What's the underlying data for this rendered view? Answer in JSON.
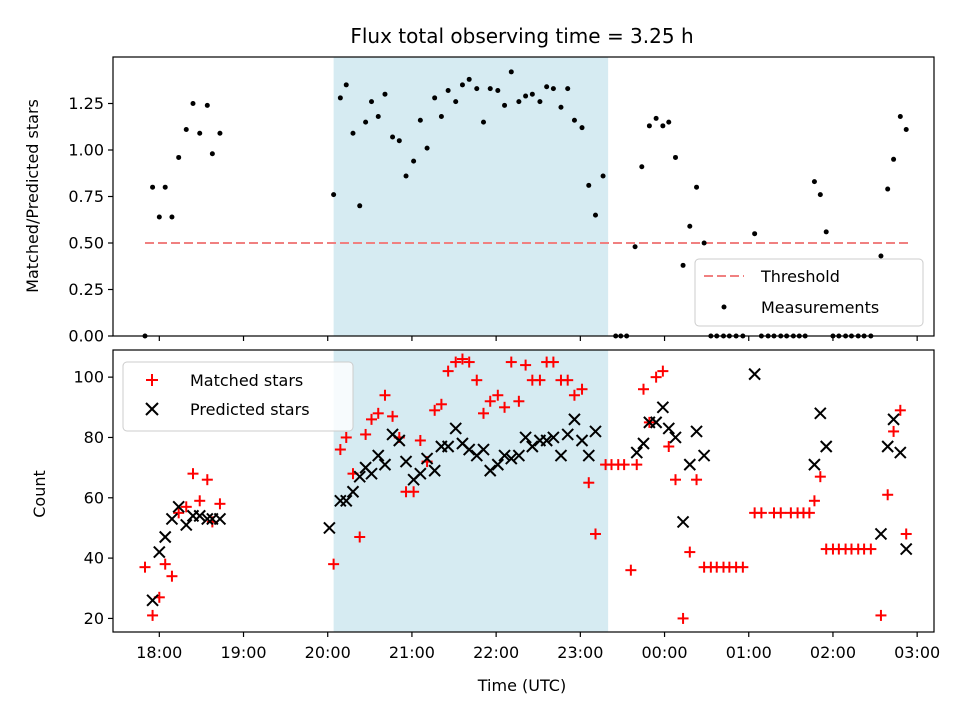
{
  "chart_data": [
    {
      "type": "scatter",
      "title": "Flux total observing time = 3.25 h",
      "xlabel": "",
      "ylabel": "Matched/Predicted stars",
      "xlim": [
        17.45,
        27.2
      ],
      "ylim": [
        0,
        1.5
      ],
      "yticks": [
        0,
        0.25,
        0.5,
        0.75,
        1.0,
        1.25
      ],
      "ytick_labels": [
        "0.00",
        "0.25",
        "0.50",
        "0.75",
        "1.00",
        "1.25"
      ],
      "shaded_region": [
        20.07,
        23.33
      ],
      "threshold": {
        "label": "Threshold",
        "value": 0.5,
        "x_range": [
          17.83,
          26.92
        ],
        "color": "#f08080"
      },
      "legend": {
        "position": "lower-right",
        "entries": [
          "Threshold",
          "Measurements"
        ]
      },
      "series": [
        {
          "name": "Measurements",
          "color": "#000000",
          "points": [
            [
              17.83,
              0.0
            ],
            [
              17.92,
              0.8
            ],
            [
              18.0,
              0.64
            ],
            [
              18.07,
              0.8
            ],
            [
              18.15,
              0.64
            ],
            [
              18.23,
              0.96
            ],
            [
              18.32,
              1.11
            ],
            [
              18.4,
              1.25
            ],
            [
              18.48,
              1.09
            ],
            [
              18.57,
              1.24
            ],
            [
              18.63,
              0.98
            ],
            [
              18.72,
              1.09
            ],
            [
              20.07,
              0.76
            ],
            [
              20.15,
              1.28
            ],
            [
              20.22,
              1.35
            ],
            [
              20.3,
              1.09
            ],
            [
              20.38,
              0.7
            ],
            [
              20.45,
              1.15
            ],
            [
              20.52,
              1.26
            ],
            [
              20.6,
              1.18
            ],
            [
              20.68,
              1.3
            ],
            [
              20.77,
              1.07
            ],
            [
              20.85,
              1.05
            ],
            [
              20.93,
              0.86
            ],
            [
              21.02,
              0.94
            ],
            [
              21.1,
              1.16
            ],
            [
              21.18,
              1.01
            ],
            [
              21.27,
              1.28
            ],
            [
              21.35,
              1.18
            ],
            [
              21.43,
              1.32
            ],
            [
              21.52,
              1.26
            ],
            [
              21.6,
              1.35
            ],
            [
              21.68,
              1.38
            ],
            [
              21.77,
              1.33
            ],
            [
              21.85,
              1.15
            ],
            [
              21.93,
              1.33
            ],
            [
              22.02,
              1.32
            ],
            [
              22.1,
              1.24
            ],
            [
              22.18,
              1.42
            ],
            [
              22.27,
              1.26
            ],
            [
              22.35,
              1.29
            ],
            [
              22.43,
              1.3
            ],
            [
              22.52,
              1.26
            ],
            [
              22.6,
              1.34
            ],
            [
              22.68,
              1.33
            ],
            [
              22.77,
              1.23
            ],
            [
              22.85,
              1.33
            ],
            [
              22.93,
              1.16
            ],
            [
              23.02,
              1.12
            ],
            [
              23.1,
              0.81
            ],
            [
              23.18,
              0.65
            ],
            [
              23.27,
              0.86
            ],
            [
              23.42,
              0.0
            ],
            [
              23.48,
              0.0
            ],
            [
              23.55,
              0.0
            ],
            [
              23.65,
              0.48
            ],
            [
              23.73,
              0.91
            ],
            [
              23.82,
              1.13
            ],
            [
              23.9,
              1.17
            ],
            [
              23.98,
              1.13
            ],
            [
              24.05,
              1.15
            ],
            [
              24.13,
              0.96
            ],
            [
              24.22,
              0.38
            ],
            [
              24.3,
              0.59
            ],
            [
              24.38,
              0.8
            ],
            [
              24.47,
              0.5
            ],
            [
              24.55,
              0.0
            ],
            [
              24.62,
              0.0
            ],
            [
              24.7,
              0.0
            ],
            [
              24.77,
              0.0
            ],
            [
              24.85,
              0.0
            ],
            [
              24.93,
              0.0
            ],
            [
              25.07,
              0.55
            ],
            [
              25.15,
              0.0
            ],
            [
              25.23,
              0.0
            ],
            [
              25.3,
              0.0
            ],
            [
              25.38,
              0.0
            ],
            [
              25.45,
              0.0
            ],
            [
              25.53,
              0.0
            ],
            [
              25.6,
              0.0
            ],
            [
              25.67,
              0.0
            ],
            [
              25.78,
              0.83
            ],
            [
              25.85,
              0.76
            ],
            [
              25.92,
              0.56
            ],
            [
              26.0,
              0.0
            ],
            [
              26.07,
              0.0
            ],
            [
              26.15,
              0.0
            ],
            [
              26.22,
              0.0
            ],
            [
              26.3,
              0.0
            ],
            [
              26.37,
              0.0
            ],
            [
              26.45,
              0.0
            ],
            [
              26.57,
              0.43
            ],
            [
              26.65,
              0.79
            ],
            [
              26.72,
              0.95
            ],
            [
              26.8,
              1.18
            ],
            [
              26.87,
              1.11
            ]
          ]
        }
      ]
    },
    {
      "type": "scatter",
      "title": "",
      "xlabel": "Time (UTC)",
      "ylabel": "Count",
      "xlim": [
        17.45,
        27.2
      ],
      "ylim": [
        15.5,
        109
      ],
      "yticks": [
        20,
        40,
        60,
        80,
        100
      ],
      "ytick_labels": [
        "20",
        "40",
        "60",
        "80",
        "100"
      ],
      "xticks": [
        18,
        19,
        20,
        21,
        22,
        23,
        24,
        25,
        26,
        27
      ],
      "xtick_labels": [
        "18:00",
        "19:00",
        "20:00",
        "21:00",
        "22:00",
        "23:00",
        "00:00",
        "01:00",
        "02:00",
        "03:00"
      ],
      "shaded_region": [
        20.07,
        23.33
      ],
      "legend": {
        "position": "upper-left",
        "entries": [
          "Matched stars",
          "Predicted stars"
        ]
      },
      "series": [
        {
          "name": "Matched stars",
          "marker": "+",
          "color": "#ff0000",
          "points": [
            [
              17.83,
              37
            ],
            [
              17.92,
              21
            ],
            [
              18.0,
              27
            ],
            [
              18.07,
              38
            ],
            [
              18.15,
              34
            ],
            [
              18.23,
              55
            ],
            [
              18.32,
              57
            ],
            [
              18.4,
              68
            ],
            [
              18.48,
              59
            ],
            [
              18.57,
              66
            ],
            [
              18.63,
              52
            ],
            [
              18.72,
              58
            ],
            [
              20.07,
              38
            ],
            [
              20.15,
              76
            ],
            [
              20.22,
              80
            ],
            [
              20.3,
              68
            ],
            [
              20.38,
              47
            ],
            [
              20.45,
              81
            ],
            [
              20.52,
              86
            ],
            [
              20.6,
              88
            ],
            [
              20.68,
              94
            ],
            [
              20.77,
              87
            ],
            [
              20.85,
              80
            ],
            [
              20.93,
              62
            ],
            [
              21.02,
              62
            ],
            [
              21.1,
              79
            ],
            [
              21.18,
              72
            ],
            [
              21.27,
              89
            ],
            [
              21.35,
              91
            ],
            [
              21.43,
              102
            ],
            [
              21.52,
              105
            ],
            [
              21.6,
              106
            ],
            [
              21.68,
              105
            ],
            [
              21.77,
              99
            ],
            [
              21.85,
              88
            ],
            [
              21.93,
              92
            ],
            [
              22.02,
              94
            ],
            [
              22.1,
              90
            ],
            [
              22.18,
              105
            ],
            [
              22.27,
              92
            ],
            [
              22.35,
              104
            ],
            [
              22.43,
              99
            ],
            [
              22.52,
              99
            ],
            [
              22.6,
              105
            ],
            [
              22.68,
              105
            ],
            [
              22.77,
              99
            ],
            [
              22.85,
              99
            ],
            [
              22.93,
              94
            ],
            [
              23.02,
              96
            ],
            [
              23.1,
              65
            ],
            [
              23.18,
              48
            ],
            [
              23.3,
              71
            ],
            [
              23.37,
              71
            ],
            [
              23.45,
              71
            ],
            [
              23.52,
              71
            ],
            [
              23.6,
              36
            ],
            [
              23.67,
              71
            ],
            [
              23.75,
              96
            ],
            [
              23.82,
              85
            ],
            [
              23.9,
              100
            ],
            [
              23.98,
              102
            ],
            [
              24.05,
              77
            ],
            [
              24.13,
              66
            ],
            [
              24.22,
              20
            ],
            [
              24.3,
              42
            ],
            [
              24.38,
              66
            ],
            [
              24.47,
              37
            ],
            [
              24.55,
              37
            ],
            [
              24.62,
              37
            ],
            [
              24.7,
              37
            ],
            [
              24.77,
              37
            ],
            [
              24.85,
              37
            ],
            [
              24.93,
              37
            ],
            [
              25.07,
              55
            ],
            [
              25.15,
              55
            ],
            [
              25.3,
              55
            ],
            [
              25.38,
              55
            ],
            [
              25.5,
              55
            ],
            [
              25.58,
              55
            ],
            [
              25.65,
              55
            ],
            [
              25.72,
              55
            ],
            [
              25.78,
              59
            ],
            [
              25.85,
              67
            ],
            [
              25.92,
              43
            ],
            [
              26.0,
              43
            ],
            [
              26.07,
              43
            ],
            [
              26.15,
              43
            ],
            [
              26.22,
              43
            ],
            [
              26.3,
              43
            ],
            [
              26.37,
              43
            ],
            [
              26.45,
              43
            ],
            [
              26.57,
              21
            ],
            [
              26.65,
              61
            ],
            [
              26.72,
              82
            ],
            [
              26.8,
              89
            ],
            [
              26.87,
              48
            ]
          ]
        },
        {
          "name": "Predicted stars",
          "marker": "x",
          "color": "#000000",
          "points": [
            [
              17.92,
              26
            ],
            [
              18.0,
              42
            ],
            [
              18.07,
              47
            ],
            [
              18.15,
              53
            ],
            [
              18.23,
              57
            ],
            [
              18.32,
              51
            ],
            [
              18.4,
              54
            ],
            [
              18.48,
              54
            ],
            [
              18.57,
              53
            ],
            [
              18.63,
              53
            ],
            [
              18.72,
              53
            ],
            [
              20.02,
              50
            ],
            [
              20.15,
              59
            ],
            [
              20.22,
              59
            ],
            [
              20.3,
              62
            ],
            [
              20.38,
              67
            ],
            [
              20.45,
              70
            ],
            [
              20.52,
              68
            ],
            [
              20.6,
              74
            ],
            [
              20.68,
              71
            ],
            [
              20.77,
              81
            ],
            [
              20.85,
              79
            ],
            [
              20.93,
              72
            ],
            [
              21.02,
              66
            ],
            [
              21.1,
              68
            ],
            [
              21.18,
              73
            ],
            [
              21.27,
              69
            ],
            [
              21.35,
              77
            ],
            [
              21.43,
              77
            ],
            [
              21.52,
              83
            ],
            [
              21.6,
              78
            ],
            [
              21.68,
              76
            ],
            [
              21.77,
              74
            ],
            [
              21.85,
              76
            ],
            [
              21.93,
              69
            ],
            [
              22.02,
              71
            ],
            [
              22.1,
              74
            ],
            [
              22.18,
              73
            ],
            [
              22.27,
              74
            ],
            [
              22.35,
              80
            ],
            [
              22.43,
              77
            ],
            [
              22.52,
              79
            ],
            [
              22.6,
              79
            ],
            [
              22.68,
              80
            ],
            [
              22.77,
              74
            ],
            [
              22.85,
              81
            ],
            [
              22.93,
              86
            ],
            [
              23.02,
              79
            ],
            [
              23.1,
              74
            ],
            [
              23.18,
              82
            ],
            [
              23.67,
              75
            ],
            [
              23.75,
              78
            ],
            [
              23.82,
              85
            ],
            [
              23.9,
              85
            ],
            [
              23.98,
              90
            ],
            [
              24.05,
              83
            ],
            [
              24.13,
              80
            ],
            [
              24.22,
              52
            ],
            [
              24.3,
              71
            ],
            [
              24.38,
              82
            ],
            [
              24.47,
              74
            ],
            [
              25.07,
              101
            ],
            [
              25.78,
              71
            ],
            [
              25.85,
              88
            ],
            [
              25.92,
              77
            ],
            [
              26.57,
              48
            ],
            [
              26.65,
              77
            ],
            [
              26.72,
              86
            ],
            [
              26.8,
              75
            ],
            [
              26.87,
              43
            ]
          ]
        }
      ]
    }
  ]
}
